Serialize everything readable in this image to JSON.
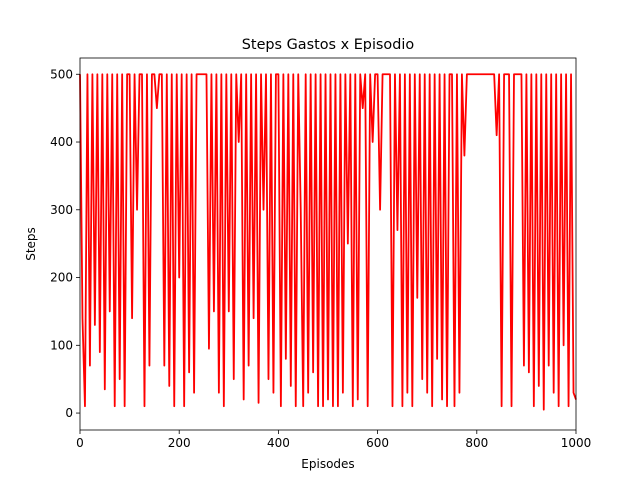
{
  "chart_data": {
    "type": "line",
    "title": "Steps Gastos x Episodio",
    "xlabel": "Episodes",
    "ylabel": "Steps",
    "xlim": [
      0,
      1000
    ],
    "ylim": [
      -25,
      524
    ],
    "xticks": [
      0,
      200,
      400,
      600,
      800,
      1000
    ],
    "yticks": [
      0,
      100,
      200,
      300,
      400,
      500
    ],
    "series": [
      {
        "color": "#ff0000",
        "x": [
          0,
          5,
          10,
          15,
          20,
          25,
          30,
          35,
          40,
          45,
          50,
          55,
          60,
          65,
          70,
          75,
          80,
          85,
          90,
          95,
          100,
          105,
          110,
          115,
          120,
          125,
          130,
          135,
          140,
          145,
          150,
          155,
          160,
          165,
          170,
          175,
          180,
          185,
          190,
          195,
          200,
          205,
          210,
          215,
          220,
          225,
          230,
          235,
          240,
          245,
          250,
          255,
          260,
          265,
          270,
          275,
          280,
          285,
          290,
          295,
          300,
          305,
          310,
          315,
          320,
          325,
          330,
          335,
          340,
          345,
          350,
          355,
          360,
          365,
          370,
          375,
          380,
          385,
          390,
          395,
          400,
          405,
          410,
          415,
          420,
          425,
          430,
          435,
          440,
          445,
          450,
          455,
          460,
          465,
          470,
          475,
          480,
          485,
          490,
          495,
          500,
          505,
          510,
          515,
          520,
          525,
          530,
          535,
          540,
          545,
          550,
          555,
          560,
          565,
          570,
          575,
          580,
          585,
          590,
          595,
          600,
          605,
          610,
          615,
          620,
          625,
          630,
          635,
          640,
          645,
          650,
          655,
          660,
          665,
          670,
          675,
          680,
          685,
          690,
          695,
          700,
          705,
          710,
          715,
          720,
          725,
          730,
          735,
          740,
          745,
          750,
          755,
          760,
          765,
          770,
          775,
          780,
          785,
          790,
          795,
          800,
          805,
          810,
          815,
          820,
          825,
          830,
          835,
          840,
          845,
          850,
          855,
          860,
          865,
          870,
          875,
          880,
          885,
          890,
          895,
          900,
          905,
          910,
          915,
          920,
          925,
          930,
          935,
          940,
          945,
          950,
          955,
          960,
          965,
          970,
          975,
          980,
          985,
          990,
          995,
          1000
        ],
        "values": [
          500,
          140,
          10,
          500,
          70,
          500,
          130,
          500,
          90,
          500,
          35,
          500,
          150,
          500,
          10,
          500,
          50,
          500,
          10,
          500,
          500,
          140,
          500,
          300,
          500,
          500,
          10,
          500,
          70,
          500,
          500,
          450,
          500,
          500,
          70,
          500,
          40,
          500,
          10,
          500,
          200,
          500,
          10,
          500,
          60,
          500,
          30,
          500,
          500,
          500,
          500,
          500,
          95,
          500,
          150,
          500,
          30,
          500,
          10,
          500,
          150,
          500,
          50,
          500,
          400,
          500,
          20,
          500,
          70,
          500,
          140,
          500,
          15,
          500,
          300,
          500,
          50,
          500,
          30,
          500,
          500,
          10,
          500,
          80,
          500,
          40,
          500,
          10,
          500,
          300,
          10,
          500,
          30,
          500,
          60,
          500,
          10,
          500,
          10,
          500,
          20,
          500,
          10,
          500,
          10,
          500,
          30,
          500,
          250,
          500,
          10,
          500,
          20,
          500,
          450,
          500,
          10,
          500,
          400,
          500,
          500,
          300,
          500,
          500,
          500,
          500,
          10,
          500,
          270,
          500,
          10,
          500,
          30,
          500,
          10,
          500,
          170,
          500,
          50,
          500,
          30,
          500,
          10,
          500,
          80,
          500,
          20,
          500,
          10,
          500,
          500,
          10,
          500,
          30,
          500,
          380,
          500,
          500,
          500,
          500,
          500,
          500,
          500,
          500,
          500,
          500,
          500,
          500,
          410,
          500,
          10,
          500,
          500,
          500,
          10,
          500,
          500,
          500,
          500,
          70,
          500,
          60,
          500,
          10,
          500,
          40,
          500,
          5,
          500,
          70,
          500,
          30,
          500,
          10,
          500,
          100,
          500,
          10,
          500,
          30,
          20
        ]
      }
    ]
  }
}
